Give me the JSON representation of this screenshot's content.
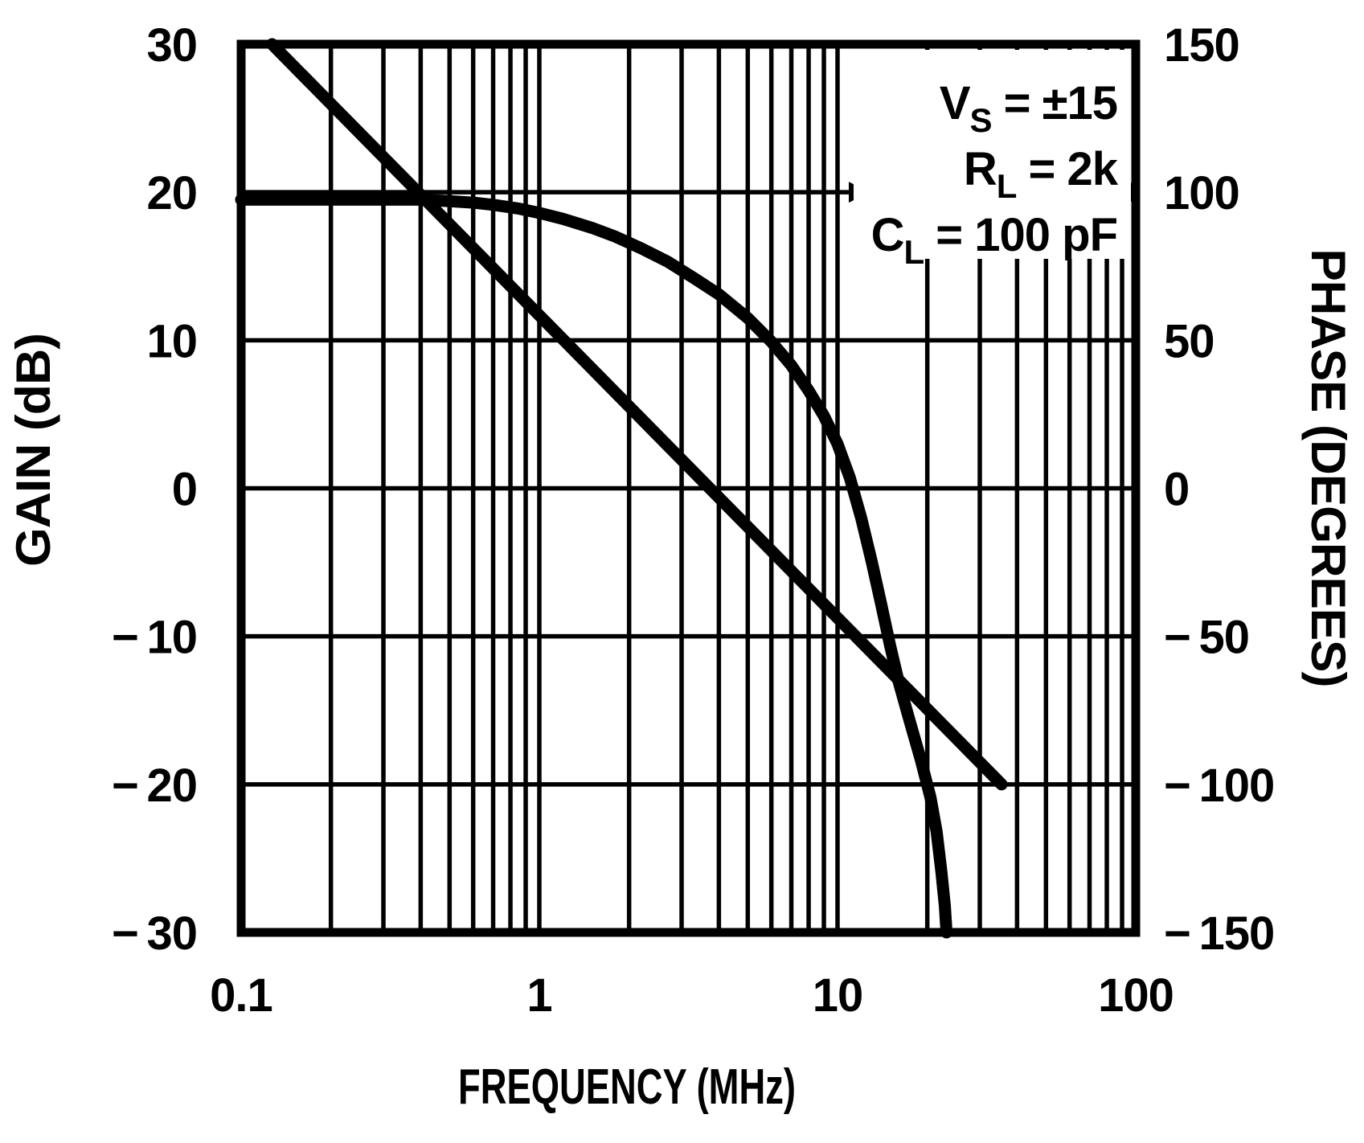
{
  "chart_data": {
    "type": "line",
    "title": "",
    "xlabel": "FREQUENCY (MHz)",
    "ylabel_left": "GAIN (dB)",
    "ylabel_right": "PHASE (DEGREES)",
    "x_axis": {
      "scale": "log",
      "min": 0.1,
      "max": 100,
      "unit": "MHz",
      "tick_values": [
        0.1,
        1,
        10,
        100
      ],
      "tick_labels": [
        "0.1",
        "1",
        "10",
        "100"
      ],
      "minor_ticks_per_decade": [
        2,
        3,
        4,
        5,
        6,
        7,
        8,
        9
      ]
    },
    "y_axis_left": {
      "min": -30,
      "max": 30,
      "step": 10,
      "tick_values": [
        30,
        20,
        10,
        0,
        -10,
        -20,
        -30
      ],
      "tick_labels": [
        "30",
        "20",
        "10",
        "0",
        "− 10",
        "− 20",
        "− 30"
      ]
    },
    "y_axis_right": {
      "min": -150,
      "max": 150,
      "step": 50,
      "tick_values": [
        150,
        100,
        50,
        0,
        -50,
        -100,
        -150
      ],
      "tick_labels": [
        "150",
        "100",
        "50",
        "0",
        "− 50",
        "− 100",
        "− 150"
      ]
    },
    "grid": true,
    "legend": "none",
    "annotation": {
      "lines": [
        {
          "symbol": "V",
          "subscript": "S",
          "rest": " = ±15"
        },
        {
          "symbol": "R",
          "subscript": "L",
          "rest": " = 2k"
        },
        {
          "symbol": "C",
          "subscript": "L",
          "rest": " = 100 pF"
        }
      ]
    },
    "series": [
      {
        "name": "gain",
        "axis": "left",
        "unit": "dB",
        "points": [
          [
            0.1,
            19.5
          ],
          [
            0.15,
            19.5
          ],
          [
            0.2,
            19.5
          ],
          [
            0.3,
            19.5
          ],
          [
            0.4,
            19.5
          ],
          [
            0.5,
            19.4
          ],
          [
            0.6,
            19.3
          ],
          [
            0.7,
            19.15
          ],
          [
            0.85,
            18.9
          ],
          [
            1.0,
            18.6
          ],
          [
            1.2,
            18.2
          ],
          [
            1.5,
            17.6
          ],
          [
            1.8,
            17.0
          ],
          [
            2.2,
            16.2
          ],
          [
            2.7,
            15.3
          ],
          [
            3.3,
            14.2
          ],
          [
            4.0,
            13.1
          ],
          [
            5.0,
            11.5
          ],
          [
            6.0,
            9.9
          ],
          [
            7.0,
            8.3
          ],
          [
            8.0,
            6.6
          ],
          [
            9.0,
            4.9
          ],
          [
            10.0,
            3.0
          ],
          [
            11.0,
            0.7
          ],
          [
            12.0,
            -2.0
          ],
          [
            13.0,
            -4.9
          ],
          [
            14.0,
            -7.8
          ],
          [
            15.0,
            -10.6
          ],
          [
            16.0,
            -13.0
          ],
          [
            17.5,
            -15.8
          ],
          [
            19.0,
            -18.3
          ],
          [
            20.5,
            -20.9
          ],
          [
            21.5,
            -23.2
          ],
          [
            22.3,
            -25.9
          ],
          [
            22.9,
            -28.2
          ],
          [
            23.2,
            -30.0
          ]
        ]
      },
      {
        "name": "phase",
        "axis": "right",
        "unit": "degrees",
        "points": [
          [
            0.127,
            150
          ],
          [
            35.5,
            -100
          ]
        ]
      }
    ],
    "colors": {
      "ink": "#000000",
      "paper": "#ffffff"
    }
  }
}
